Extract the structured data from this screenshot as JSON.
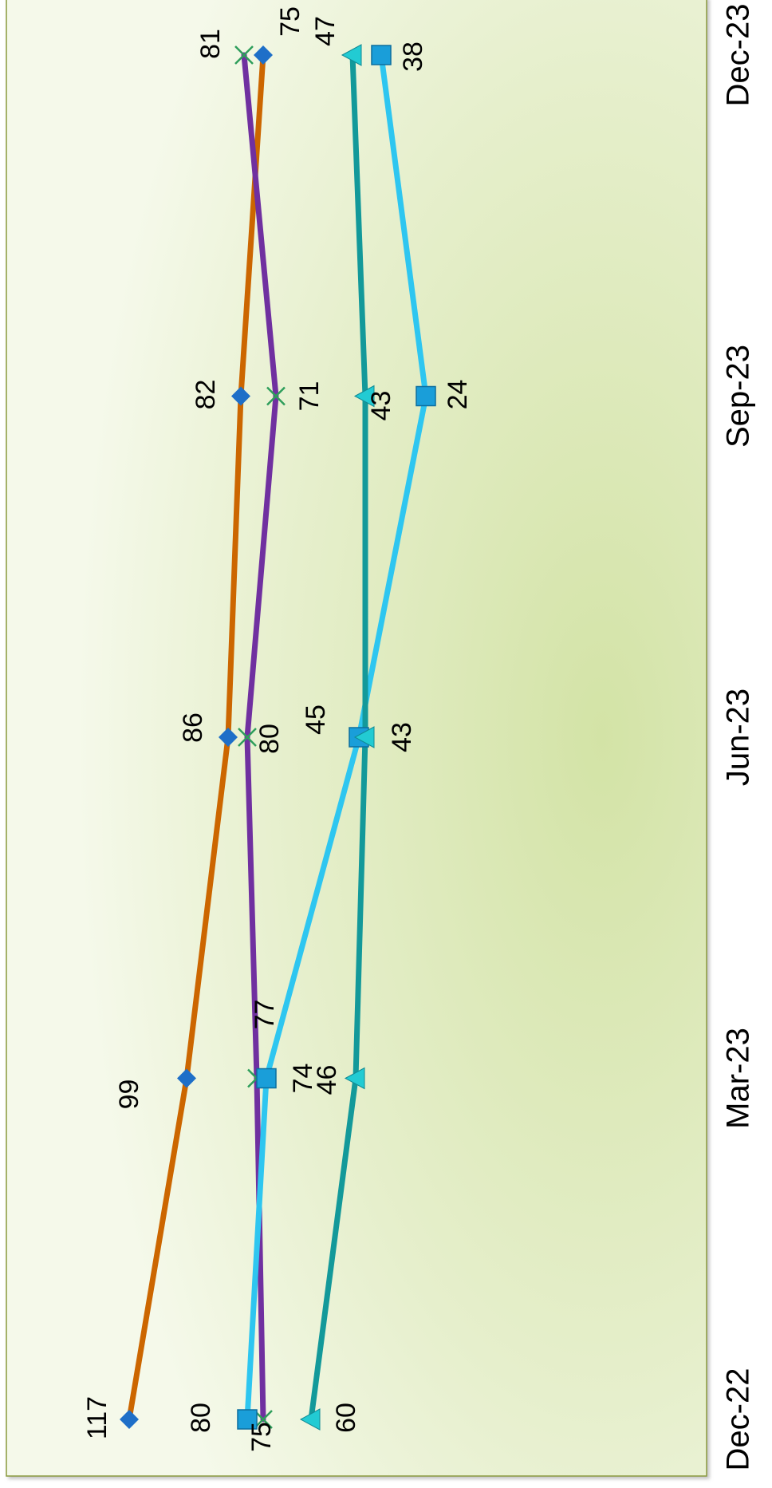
{
  "chart_data": {
    "type": "line",
    "title": "",
    "xlabel": "",
    "ylabel": "",
    "categories": [
      "Dec-22",
      "Mar-23",
      "Jun-23",
      "Sep-23",
      "Dec-23"
    ],
    "ylim": [
      0,
      140
    ],
    "orientation": "rotated 90 degrees clockwise (dates run top-to-bottom from bottom; values grow leftward)",
    "grid": false,
    "legend": "none",
    "series": [
      {
        "values": [
          117,
          99,
          86,
          82,
          75
        ],
        "color": "#CC6600",
        "marker": "diamond",
        "marker_color": "#1E6FC8"
      },
      {
        "values": [
          75,
          77,
          80,
          71,
          81
        ],
        "color": "#7030A0",
        "marker": "x",
        "marker_color": "#2E9E5B"
      },
      {
        "values": [
          80,
          74,
          45,
          24,
          38
        ],
        "color": "#2EC6F0",
        "marker": "square",
        "marker_color": "#1A9ED9"
      },
      {
        "values": [
          60,
          46,
          43,
          43,
          47
        ],
        "color": "#13999A",
        "marker": "triangle",
        "marker_color": "#22CBD3"
      }
    ]
  }
}
